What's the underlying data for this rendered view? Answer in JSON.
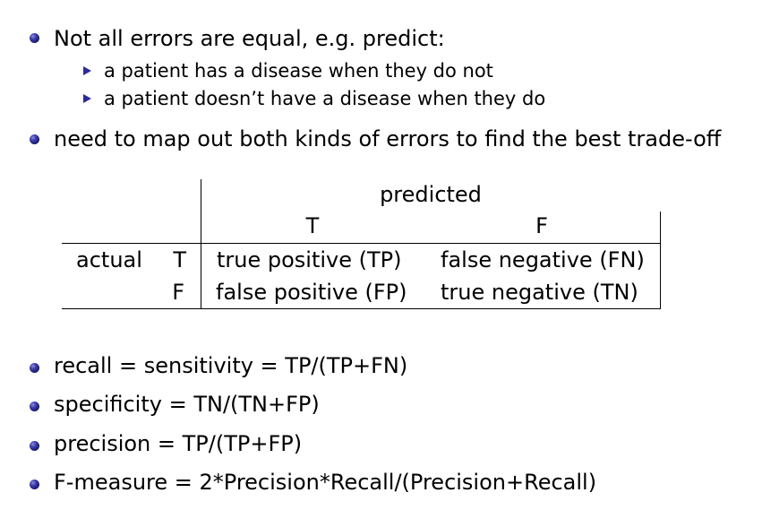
{
  "bullets_top": [
    {
      "text": "Not all errors are equal, e.g. predict:",
      "subitems": [
        "a patient has a disease when they do not",
        "a patient doesn’t have a disease when they do"
      ]
    },
    {
      "text": "need to map out both kinds of errors to find the best trade-off"
    }
  ],
  "table": {
    "predicted_header": "predicted",
    "predicted_T": "T",
    "predicted_F": "F",
    "actual_label": "actual",
    "actual_T": "T",
    "actual_F": "F",
    "tp": "true positive (TP)",
    "fn": "false negative (FN)",
    "fp": "false positive (FP)",
    "tn": "true negative (TN)"
  },
  "bullets_bottom": [
    "recall = sensitivity = TP/(TP+FN)",
    "specificity = TN/(TN+FP)",
    "precision = TP/(TP+FP)",
    "F-measure = 2*Precision*Recall/(Precision+Recall)"
  ]
}
